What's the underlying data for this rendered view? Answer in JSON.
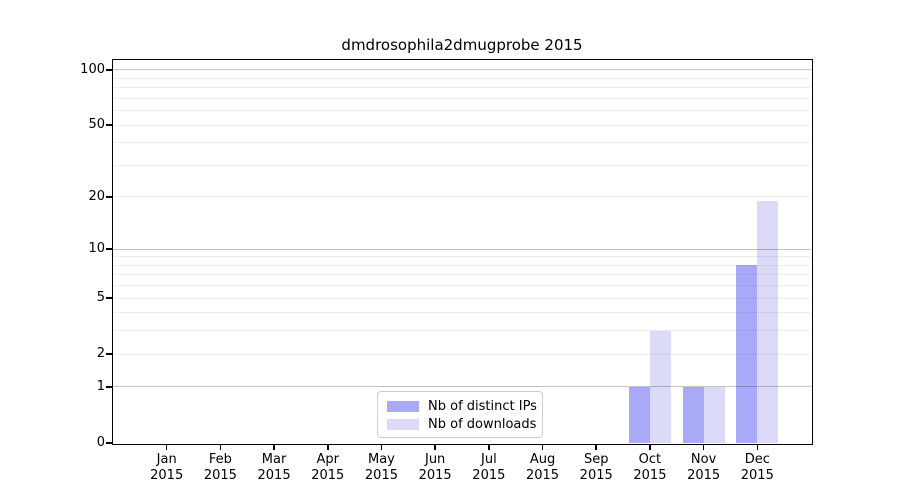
{
  "chart_data": {
    "type": "bar",
    "title": "dmdrosophila2dmugprobe 2015",
    "categories": [
      "Jan",
      "Feb",
      "Mar",
      "Apr",
      "May",
      "Jun",
      "Jul",
      "Aug",
      "Sep",
      "Oct",
      "Nov",
      "Dec"
    ],
    "category_year": "2015",
    "series": [
      {
        "name": "Nb of distinct IPs",
        "color": "#a9a9f8",
        "values": [
          0,
          0,
          0,
          0,
          0,
          0,
          0,
          0,
          0,
          1,
          1,
          8
        ]
      },
      {
        "name": "Nb of downloads",
        "color": "#dbdbf7",
        "values": [
          0,
          0,
          0,
          0,
          0,
          0,
          0,
          0,
          0,
          3,
          1,
          19
        ]
      }
    ],
    "xlabel": "",
    "ylabel": "",
    "yscale": "log1p",
    "ylim": [
      0,
      113
    ],
    "yticks": [
      0,
      1,
      2,
      5,
      10,
      20,
      50,
      100
    ],
    "grid": "on",
    "grid_major_values": [
      1,
      10,
      100
    ],
    "grid_minor_values": [
      2,
      3,
      4,
      5,
      6,
      7,
      8,
      9,
      20,
      30,
      40,
      50,
      60,
      70,
      80,
      90
    ],
    "grid_major_color": "rgba(55,55,55,0.30)",
    "grid_minor_color": "rgba(55,55,55,0.09)",
    "legend_position": "lower center",
    "spine_color": "#000000",
    "text_color": "#000000"
  }
}
